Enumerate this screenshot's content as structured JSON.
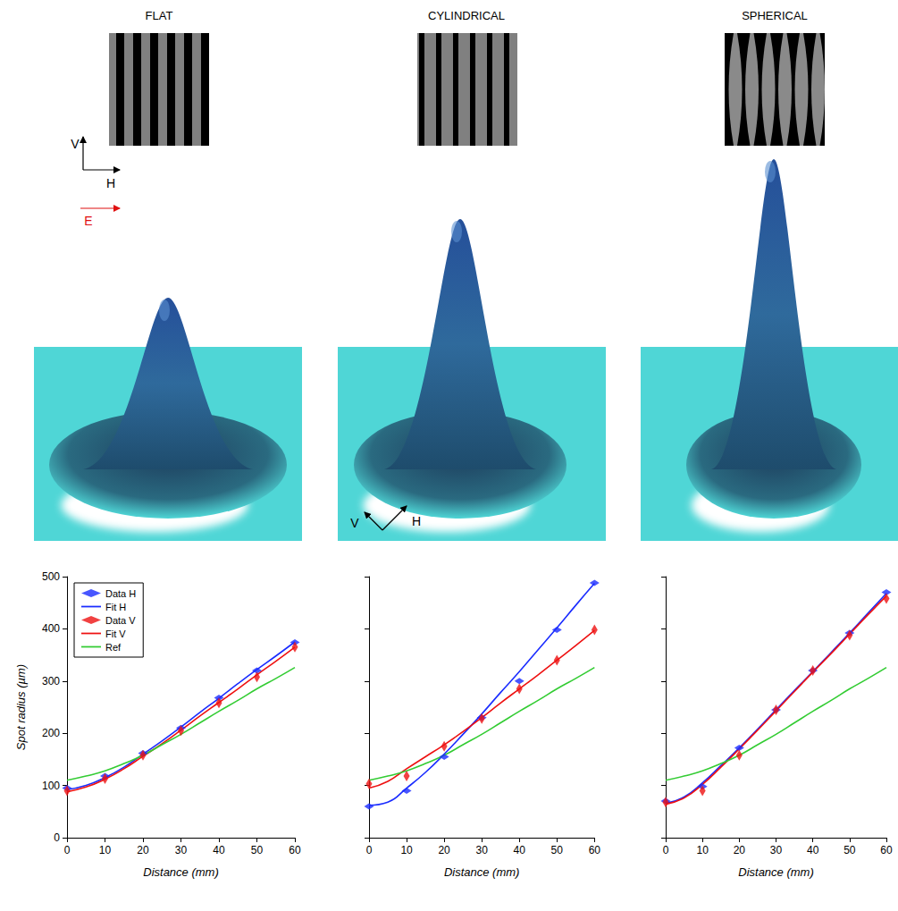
{
  "figure": {
    "axis_labels": [
      "V",
      "H"
    ],
    "field_label": "E",
    "surface_axis_labels": [
      "V",
      "H"
    ]
  },
  "chart_data": [
    {
      "type": "line",
      "title": "FLAT",
      "x_label": "Distance (mm)",
      "y_label": "Spot radius (µm)",
      "xlim": [
        0,
        60
      ],
      "xticks": [
        0,
        10,
        20,
        30,
        40,
        50,
        60
      ],
      "ylim": [
        0,
        500
      ],
      "yticks": [
        0,
        100,
        200,
        300,
        400,
        500
      ],
      "grid": false,
      "legend": "upper left",
      "series": [
        {
          "name": "Data H",
          "type": "scatter",
          "marker": "diamond",
          "color": "#1a2cff",
          "x": [
            0,
            10,
            20,
            30,
            40,
            50,
            60
          ],
          "values": [
            95,
            118,
            162,
            210,
            268,
            320,
            374
          ]
        },
        {
          "name": "Fit H",
          "type": "line",
          "line_style": "solid",
          "color": "#1a2cff",
          "x": [
            0,
            5,
            10,
            15,
            20,
            25,
            30,
            35,
            40,
            45,
            50,
            55,
            60
          ],
          "values": [
            92,
            100,
            115,
            135,
            160,
            185,
            212,
            240,
            267,
            295,
            322,
            348,
            375
          ]
        },
        {
          "name": "Data V",
          "type": "scatter",
          "marker": "diamond",
          "color": "#ee1111",
          "x": [
            0,
            10,
            20,
            30,
            40,
            50,
            60
          ],
          "values": [
            90,
            113,
            158,
            205,
            258,
            308,
            365
          ]
        },
        {
          "name": "Fit V",
          "type": "line",
          "line_style": "solid",
          "color": "#ee1111",
          "x": [
            0,
            5,
            10,
            15,
            20,
            25,
            30,
            35,
            40,
            45,
            50,
            55,
            60
          ],
          "values": [
            88,
            97,
            112,
            132,
            156,
            180,
            206,
            233,
            259,
            285,
            312,
            338,
            365
          ]
        },
        {
          "name": "Ref",
          "type": "line",
          "line_style": "solid",
          "color": "#33cc33",
          "x": [
            0,
            5,
            10,
            15,
            20,
            25,
            30,
            35,
            40,
            45,
            50,
            55,
            60
          ],
          "values": [
            110,
            118,
            128,
            142,
            158,
            178,
            198,
            220,
            242,
            263,
            285,
            305,
            326
          ]
        }
      ]
    },
    {
      "type": "line",
      "title": "CYLINDRICAL",
      "x_label": "Distance (mm)",
      "xlim": [
        0,
        60
      ],
      "xticks": [
        0,
        10,
        20,
        30,
        40,
        50,
        60
      ],
      "ylim": [
        0,
        500
      ],
      "yticks": [
        0,
        100,
        200,
        300,
        400,
        500
      ],
      "grid": false,
      "tick_labels": "x",
      "series": [
        {
          "name": "Data H",
          "type": "scatter",
          "marker": "diamond",
          "color": "#1a2cff",
          "x": [
            0,
            10,
            20,
            30,
            40,
            50,
            60
          ],
          "values": [
            60,
            90,
            155,
            230,
            300,
            398,
            488
          ]
        },
        {
          "name": "Fit H",
          "type": "line",
          "line_style": "solid",
          "color": "#1a2cff",
          "x": [
            0,
            5,
            10,
            15,
            20,
            25,
            30,
            35,
            40,
            45,
            50,
            55,
            60
          ],
          "values": [
            62,
            68,
            95,
            125,
            160,
            198,
            237,
            278,
            318,
            360,
            402,
            445,
            487
          ]
        },
        {
          "name": "Data V",
          "type": "scatter",
          "marker": "diamond",
          "color": "#ee1111",
          "x": [
            0,
            10,
            20,
            30,
            40,
            50,
            60
          ],
          "values": [
            103,
            118,
            175,
            228,
            285,
            340,
            398
          ]
        },
        {
          "name": "Fit V",
          "type": "line",
          "line_style": "solid",
          "color": "#ee1111",
          "x": [
            0,
            5,
            10,
            15,
            20,
            25,
            30,
            35,
            40,
            45,
            50,
            55,
            60
          ],
          "values": [
            95,
            108,
            132,
            155,
            178,
            203,
            230,
            258,
            285,
            312,
            340,
            368,
            397
          ]
        },
        {
          "name": "Ref",
          "type": "line",
          "line_style": "solid",
          "color": "#33cc33",
          "x": [
            0,
            5,
            10,
            15,
            20,
            25,
            30,
            35,
            40,
            45,
            50,
            55,
            60
          ],
          "values": [
            110,
            118,
            128,
            142,
            158,
            178,
            198,
            220,
            242,
            263,
            285,
            305,
            326
          ]
        }
      ]
    },
    {
      "type": "line",
      "title": "SPHERICAL",
      "x_label": "Distance (mm)",
      "xlim": [
        0,
        60
      ],
      "xticks": [
        0,
        10,
        20,
        30,
        40,
        50,
        60
      ],
      "ylim": [
        0,
        500
      ],
      "yticks": [
        0,
        100,
        200,
        300,
        400,
        500
      ],
      "grid": false,
      "tick_labels": "x",
      "series": [
        {
          "name": "Data H",
          "type": "scatter",
          "marker": "diamond",
          "color": "#1a2cff",
          "x": [
            0,
            10,
            20,
            30,
            40,
            50,
            60
          ],
          "values": [
            70,
            98,
            172,
            245,
            320,
            392,
            470
          ]
        },
        {
          "name": "Fit H",
          "type": "line",
          "line_style": "solid",
          "color": "#1a2cff",
          "x": [
            0,
            5,
            10,
            15,
            20,
            25,
            30,
            35,
            40,
            45,
            50,
            55,
            60
          ],
          "values": [
            66,
            78,
            105,
            138,
            172,
            208,
            245,
            282,
            318,
            355,
            392,
            430,
            468
          ]
        },
        {
          "name": "Data V",
          "type": "scatter",
          "marker": "diamond",
          "color": "#ee1111",
          "x": [
            0,
            10,
            20,
            30,
            40,
            50,
            60
          ],
          "values": [
            68,
            90,
            158,
            245,
            320,
            388,
            458
          ]
        },
        {
          "name": "Fit V",
          "type": "line",
          "line_style": "solid",
          "color": "#ee1111",
          "x": [
            0,
            5,
            10,
            15,
            20,
            25,
            30,
            35,
            40,
            45,
            50,
            55,
            60
          ],
          "values": [
            64,
            76,
            102,
            135,
            170,
            206,
            243,
            280,
            317,
            353,
            390,
            427,
            463
          ]
        },
        {
          "name": "Ref",
          "type": "line",
          "line_style": "solid",
          "color": "#33cc33",
          "x": [
            0,
            5,
            10,
            15,
            20,
            25,
            30,
            35,
            40,
            45,
            50,
            55,
            60
          ],
          "values": [
            110,
            118,
            128,
            142,
            158,
            178,
            198,
            220,
            242,
            263,
            285,
            305,
            326
          ]
        }
      ]
    }
  ]
}
